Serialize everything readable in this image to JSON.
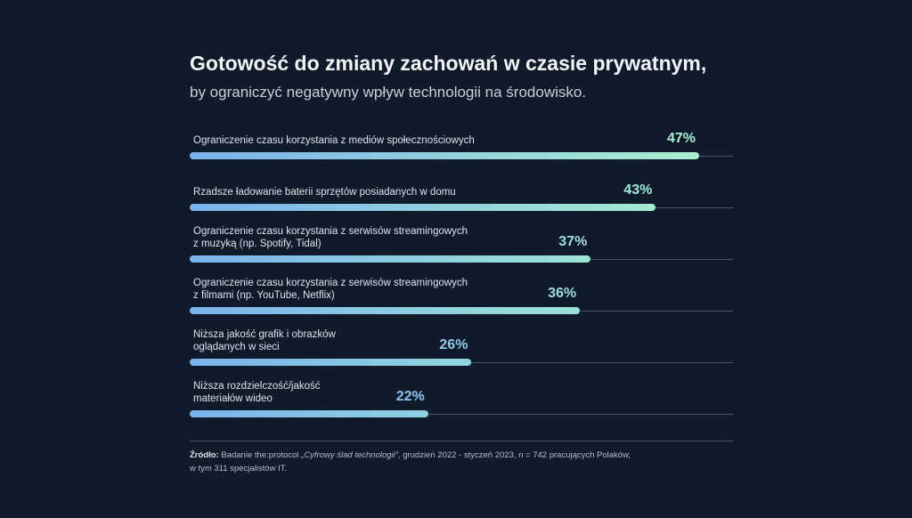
{
  "title": "Gotowość do zmiany zachowań w czasie prywatnym,",
  "subtitle": "by ograniczyć negatywny wpływ technologii na środowisko.",
  "source": {
    "label": "Źródło:",
    "text_before": " Badanie the:protocol ",
    "study_name": "„Cyfrowy ślad technologii”",
    "text_after": ", grudzień 2022 - styczeń 2023, n = 742 pracujących Polaków,",
    "line2": "w tym 311 specjalistów IT."
  },
  "chart_data": {
    "type": "bar",
    "orientation": "horizontal",
    "categories": [
      [
        "Ograniczenie czasu korzystania z mediów społecznościowych"
      ],
      [
        "Rzadsze ładowanie baterii sprzętów posiadanych w domu"
      ],
      [
        "Ograniczenie czasu korzystania z serwisów streamingowych",
        "z muzyką (np. Spotify, Tidal)"
      ],
      [
        "Ograniczenie czasu korzystania z serwisów streamingowych",
        "z filmami (np. YouTube, Netflix)"
      ],
      [
        "Niższa jakość grafik i obrazków",
        "oglądanych w sieci"
      ],
      [
        "Niższa rozdzielczość/jakość",
        "materiałów wideo"
      ]
    ],
    "values": [
      47,
      43,
      37,
      36,
      26,
      22
    ],
    "value_labels": [
      "47%",
      "43%",
      "37%",
      "36%",
      "26%",
      "22%"
    ],
    "xlim": [
      0,
      50
    ],
    "grid": false,
    "colors": {
      "bar_start": "#7ab3ec",
      "bar_end": "#a6f0d0",
      "label_high": "#a6f0d0",
      "label_low": "#8fc3f2",
      "track": "#4a5262"
    }
  }
}
